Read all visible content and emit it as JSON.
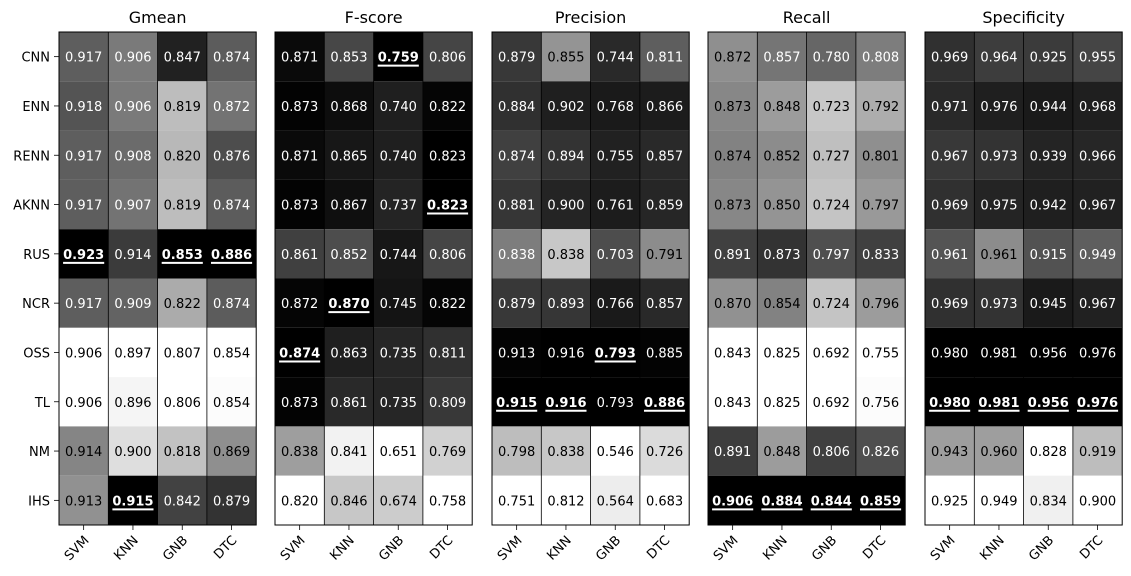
{
  "chart_data": {
    "type": "heatmap",
    "rows": [
      "CNN",
      "ENN",
      "RENN",
      "AKNN",
      "RUS",
      "NCR",
      "OSS",
      "TL",
      "NM",
      "IHS"
    ],
    "columns": [
      "SVM",
      "KNN",
      "GNB",
      "DTC"
    ],
    "panels": [
      {
        "title": "Gmean",
        "values": [
          [
            "0.917",
            "0.906",
            "0.847",
            "0.874"
          ],
          [
            "0.918",
            "0.906",
            "0.819",
            "0.872"
          ],
          [
            "0.917",
            "0.908",
            "0.820",
            "0.876"
          ],
          [
            "0.917",
            "0.907",
            "0.819",
            "0.874"
          ],
          [
            "0.923",
            "0.914",
            "0.853",
            "0.886"
          ],
          [
            "0.917",
            "0.909",
            "0.822",
            "0.874"
          ],
          [
            "0.906",
            "0.897",
            "0.807",
            "0.854"
          ],
          [
            "0.906",
            "0.896",
            "0.806",
            "0.854"
          ],
          [
            "0.914",
            "0.900",
            "0.818",
            "0.869"
          ],
          [
            "0.913",
            "0.915",
            "0.842",
            "0.879"
          ]
        ],
        "gray": [
          [
            0.37,
            0.48,
            0.13,
            0.36
          ],
          [
            0.33,
            0.48,
            0.74,
            0.45
          ],
          [
            0.37,
            0.42,
            0.72,
            0.3
          ],
          [
            0.37,
            0.45,
            0.74,
            0.36
          ],
          [
            0.0,
            0.23,
            0.0,
            0.0
          ],
          [
            0.37,
            0.39,
            0.67,
            0.36
          ],
          [
            1.0,
            1.0,
            1.0,
            1.0
          ],
          [
            1.0,
            0.96,
            1.0,
            0.99
          ],
          [
            0.52,
            0.87,
            0.76,
            0.56
          ],
          [
            0.57,
            0.0,
            0.26,
            0.2
          ]
        ],
        "best": [
          [
            4,
            0
          ],
          [
            4,
            2
          ],
          [
            4,
            3
          ],
          [
            9,
            1
          ]
        ]
      },
      {
        "title": "F-score",
        "values": [
          [
            "0.871",
            "0.853",
            "0.759",
            "0.806"
          ],
          [
            "0.873",
            "0.868",
            "0.740",
            "0.822"
          ],
          [
            "0.871",
            "0.865",
            "0.740",
            "0.823"
          ],
          [
            "0.873",
            "0.867",
            "0.737",
            "0.823"
          ],
          [
            "0.861",
            "0.852",
            "0.744",
            "0.806"
          ],
          [
            "0.872",
            "0.870",
            "0.745",
            "0.822"
          ],
          [
            "0.874",
            "0.863",
            "0.735",
            "0.811"
          ],
          [
            "0.873",
            "0.861",
            "0.735",
            "0.809"
          ],
          [
            "0.838",
            "0.841",
            "0.651",
            "0.769"
          ],
          [
            "0.820",
            "0.846",
            "0.674",
            "0.758"
          ]
        ],
        "gray": [
          [
            0.04,
            0.28,
            0.0,
            0.27
          ],
          [
            0.01,
            0.05,
            0.12,
            0.02
          ],
          [
            0.04,
            0.09,
            0.12,
            0.0
          ],
          [
            0.01,
            0.06,
            0.14,
            0.0
          ],
          [
            0.25,
            0.3,
            0.09,
            0.27
          ],
          [
            0.02,
            0.0,
            0.08,
            0.02
          ],
          [
            0.0,
            0.12,
            0.15,
            0.19
          ],
          [
            0.01,
            0.16,
            0.15,
            0.22
          ],
          [
            0.62,
            0.95,
            1.0,
            0.82
          ],
          [
            1.0,
            0.78,
            0.8,
            1.0
          ]
        ],
        "best": [
          [
            0,
            2
          ],
          [
            3,
            3
          ],
          [
            5,
            1
          ],
          [
            6,
            0
          ]
        ]
      },
      {
        "title": "Precision",
        "values": [
          [
            "0.879",
            "0.855",
            "0.744",
            "0.811"
          ],
          [
            "0.884",
            "0.902",
            "0.768",
            "0.866"
          ],
          [
            "0.874",
            "0.894",
            "0.755",
            "0.857"
          ],
          [
            "0.881",
            "0.900",
            "0.761",
            "0.859"
          ],
          [
            "0.838",
            "0.838",
            "0.703",
            "0.791"
          ],
          [
            "0.879",
            "0.893",
            "0.766",
            "0.857"
          ],
          [
            "0.913",
            "0.916",
            "0.793",
            "0.885"
          ],
          [
            "0.915",
            "0.916",
            "0.793",
            "0.886"
          ],
          [
            "0.798",
            "0.838",
            "0.546",
            "0.726"
          ],
          [
            "0.751",
            "0.812",
            "0.564",
            "0.683"
          ]
        ],
        "gray": [
          [
            0.22,
            0.58,
            0.16,
            0.37
          ],
          [
            0.19,
            0.12,
            0.1,
            0.11
          ],
          [
            0.25,
            0.2,
            0.13,
            0.16
          ],
          [
            0.21,
            0.14,
            0.11,
            0.15
          ],
          [
            0.49,
            0.78,
            0.3,
            0.55
          ],
          [
            0.22,
            0.21,
            0.1,
            0.16
          ],
          [
            0.01,
            0.0,
            0.0,
            0.01
          ],
          [
            0.0,
            0.0,
            0.0,
            0.0
          ],
          [
            0.74,
            0.78,
            1.0,
            0.86
          ],
          [
            1.0,
            1.0,
            0.93,
            1.0
          ]
        ],
        "best": [
          [
            6,
            2
          ],
          [
            7,
            0
          ],
          [
            7,
            1
          ],
          [
            7,
            3
          ]
        ]
      },
      {
        "title": "Recall",
        "values": [
          [
            "0.872",
            "0.857",
            "0.780",
            "0.808"
          ],
          [
            "0.873",
            "0.848",
            "0.723",
            "0.792"
          ],
          [
            "0.874",
            "0.852",
            "0.727",
            "0.801"
          ],
          [
            "0.873",
            "0.850",
            "0.724",
            "0.797"
          ],
          [
            "0.891",
            "0.873",
            "0.797",
            "0.833"
          ],
          [
            "0.870",
            "0.854",
            "0.724",
            "0.796"
          ],
          [
            "0.843",
            "0.825",
            "0.692",
            "0.755"
          ],
          [
            "0.843",
            "0.825",
            "0.692",
            "0.756"
          ],
          [
            "0.891",
            "0.848",
            "0.806",
            "0.826"
          ],
          [
            "0.906",
            "0.884",
            "0.844",
            "0.859"
          ]
        ],
        "gray": [
          [
            0.56,
            0.46,
            0.4,
            0.49
          ],
          [
            0.53,
            0.61,
            0.78,
            0.68
          ],
          [
            0.51,
            0.55,
            0.75,
            0.56
          ],
          [
            0.53,
            0.58,
            0.77,
            0.6
          ],
          [
            0.25,
            0.2,
            0.31,
            0.25
          ],
          [
            0.57,
            0.51,
            0.77,
            0.61
          ],
          [
            1.0,
            1.0,
            1.0,
            1.0
          ],
          [
            1.0,
            1.0,
            1.0,
            0.99
          ],
          [
            0.24,
            0.61,
            0.25,
            0.31
          ],
          [
            0.0,
            0.0,
            0.0,
            0.0
          ]
        ],
        "best": [
          [
            9,
            0
          ],
          [
            9,
            1
          ],
          [
            9,
            2
          ],
          [
            9,
            3
          ]
        ]
      },
      {
        "title": "Specificity",
        "values": [
          [
            "0.969",
            "0.964",
            "0.925",
            "0.955"
          ],
          [
            "0.971",
            "0.976",
            "0.944",
            "0.968"
          ],
          [
            "0.967",
            "0.973",
            "0.939",
            "0.966"
          ],
          [
            "0.969",
            "0.975",
            "0.942",
            "0.967"
          ],
          [
            "0.961",
            "0.961",
            "0.915",
            "0.949"
          ],
          [
            "0.969",
            "0.973",
            "0.945",
            "0.967"
          ],
          [
            "0.980",
            "0.981",
            "0.956",
            "0.976"
          ],
          [
            "0.980",
            "0.981",
            "0.956",
            "0.976"
          ],
          [
            "0.943",
            "0.960",
            "0.828",
            "0.919"
          ],
          [
            "0.925",
            "0.949",
            "0.834",
            "0.900"
          ]
        ],
        "gray": [
          [
            0.19,
            0.24,
            0.23,
            0.27
          ],
          [
            0.16,
            0.12,
            0.1,
            0.12
          ],
          [
            0.22,
            0.2,
            0.14,
            0.15
          ],
          [
            0.19,
            0.14,
            0.12,
            0.13
          ],
          [
            0.33,
            0.55,
            0.32,
            0.37
          ],
          [
            0.19,
            0.2,
            0.1,
            0.13
          ],
          [
            0.0,
            0.0,
            0.0,
            0.0
          ],
          [
            0.0,
            0.0,
            0.0,
            0.0
          ],
          [
            0.62,
            0.62,
            1.0,
            0.74
          ],
          [
            1.0,
            1.0,
            0.94,
            1.0
          ]
        ],
        "best": [
          [
            7,
            0
          ],
          [
            7,
            1
          ],
          [
            7,
            2
          ],
          [
            7,
            3
          ]
        ]
      }
    ]
  }
}
